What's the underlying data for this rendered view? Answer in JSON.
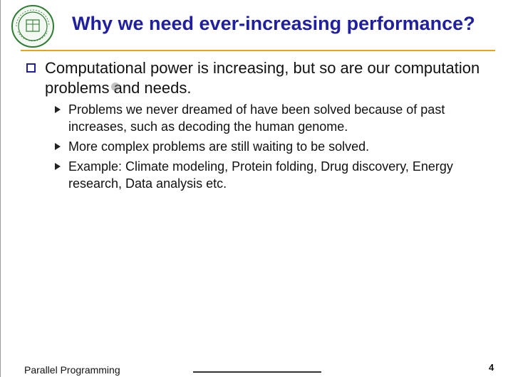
{
  "slide": {
    "title": "Why we need ever-increasing performance?",
    "bullets": [
      {
        "text": "Computational power is increasing, but so are our computation problems and needs.",
        "sub": [
          "Problems we never dreamed of have been solved because of past increases, such as decoding the human genome.",
          "More complex problems are still waiting to be solved.",
          "Example: Climate modeling, Protein folding, Drug discovery, Energy research, Data analysis etc."
        ]
      }
    ]
  },
  "footer": {
    "course": "Parallel Programming",
    "page_number": "4"
  },
  "colors": {
    "title": "#1f1f9f",
    "rule": "#e8a317",
    "bullet_box": "#1f1f9f",
    "logo": "#2e7d32"
  },
  "icons": {
    "logo": "university-seal-icon",
    "main_bullet": "hollow-square-bullet-icon",
    "sub_bullet": "triangle-bullet-icon"
  }
}
